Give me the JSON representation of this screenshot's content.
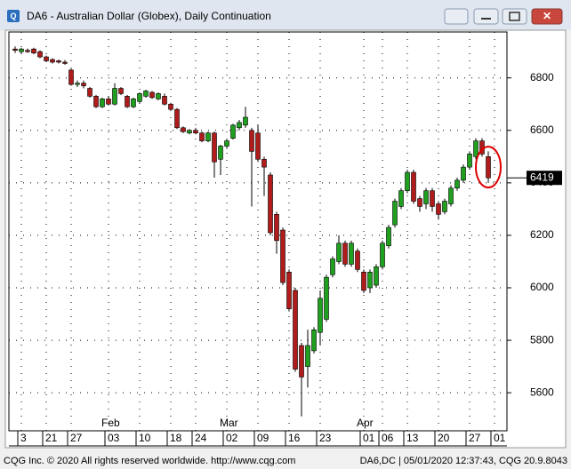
{
  "window": {
    "title": "DA6 - Australian Dollar (Globex), Daily Continuation"
  },
  "footer": {
    "left": "CQG Inc. © 2020 All rights reserved worldwide. http://www.cqg.com",
    "right": "DA6,DC | 05/01/2020 12:37:43, CQG 20.9.8043"
  },
  "chart_data": {
    "type": "candlestick",
    "up_color": "#1fa01f",
    "down_color": "#b01c1c",
    "grid": true,
    "last_price": 6419,
    "xlim": [
      -1,
      79
    ],
    "ylim": [
      5455,
      6975
    ],
    "yticks": [
      5600,
      5800,
      6000,
      6200,
      6400,
      6600,
      6800
    ],
    "xticks": [
      {
        "value": 1,
        "label": "3"
      },
      {
        "value": 5,
        "label": "21"
      },
      {
        "value": 9,
        "label": "27"
      },
      {
        "value": 15,
        "label": "03"
      },
      {
        "value": 20,
        "label": "10"
      },
      {
        "value": 25,
        "label": "18"
      },
      {
        "value": 29,
        "label": "24"
      },
      {
        "value": 34,
        "label": "02"
      },
      {
        "value": 39,
        "label": "09"
      },
      {
        "value": 44,
        "label": "16"
      },
      {
        "value": 49,
        "label": "23"
      },
      {
        "value": 56,
        "label": "01"
      },
      {
        "value": 59,
        "label": "06"
      },
      {
        "value": 63,
        "label": "13"
      },
      {
        "value": 68,
        "label": "20"
      },
      {
        "value": 73,
        "label": "27"
      },
      {
        "value": 77,
        "label": "01"
      }
    ],
    "month_labels": [
      {
        "value": 15,
        "label": "Feb"
      },
      {
        "value": 34,
        "label": "Mar"
      },
      {
        "value": 56,
        "label": "Apr"
      }
    ],
    "open": [
      6910,
      6900,
      6905,
      6910,
      6900,
      6880,
      6870,
      6865,
      6860,
      6830,
      6775,
      6780,
      6760,
      6730,
      6690,
      6720,
      6700,
      6760,
      6730,
      6690,
      6710,
      6730,
      6745,
      6720,
      6730,
      6700,
      6680,
      6610,
      6590,
      6600,
      6590,
      6560,
      6590,
      6490,
      6540,
      6570,
      6610,
      6620,
      6600,
      6590,
      6490,
      6430,
      6280,
      6220,
      6060,
      5990,
      5780,
      5700,
      5760,
      5830,
      5880,
      6050,
      6100,
      6170,
      6090,
      6140,
      6060,
      6000,
      6010,
      6080,
      6160,
      6240,
      6310,
      6370,
      6440,
      6340,
      6320,
      6370,
      6320,
      6290,
      6320,
      6380,
      6410,
      6460,
      6500,
      6560,
      6500
    ],
    "high": [
      6920,
      6915,
      6912,
      6915,
      6905,
      6885,
      6875,
      6870,
      6868,
      6835,
      6790,
      6790,
      6765,
      6735,
      6725,
      6730,
      6780,
      6765,
      6735,
      6725,
      6745,
      6755,
      6750,
      6745,
      6740,
      6705,
      6685,
      6615,
      6605,
      6610,
      6595,
      6595,
      6595,
      6545,
      6565,
      6625,
      6640,
      6690,
      6610,
      6620,
      6500,
      6440,
      6290,
      6230,
      6070,
      6000,
      5790,
      5840,
      5850,
      5990,
      6050,
      6120,
      6200,
      6180,
      6180,
      6150,
      6070,
      6070,
      6090,
      6180,
      6240,
      6340,
      6380,
      6450,
      6450,
      6350,
      6380,
      6380,
      6330,
      6340,
      6390,
      6420,
      6470,
      6520,
      6570,
      6570,
      6520
    ],
    "low": [
      6895,
      6893,
      6895,
      6890,
      6875,
      6860,
      6855,
      6855,
      6850,
      6770,
      6765,
      6760,
      6725,
      6685,
      6685,
      6695,
      6695,
      6735,
      6685,
      6685,
      6705,
      6725,
      6720,
      6715,
      6695,
      6675,
      6605,
      6590,
      6585,
      6585,
      6555,
      6555,
      6420,
      6430,
      6530,
      6565,
      6600,
      6610,
      6310,
      6480,
      6350,
      6200,
      6130,
      6010,
      5910,
      5680,
      5510,
      5620,
      5750,
      5780,
      5870,
      6040,
      6090,
      6080,
      6080,
      6060,
      5980,
      5980,
      6000,
      6070,
      6150,
      6230,
      6300,
      6360,
      6320,
      6290,
      6300,
      6290,
      6260,
      6280,
      6310,
      6370,
      6400,
      6450,
      6490,
      6500,
      6400
    ],
    "close": [
      6905,
      6910,
      6900,
      6895,
      6880,
      6865,
      6860,
      6860,
      6855,
      6775,
      6780,
      6770,
      6730,
      6690,
      6720,
      6700,
      6760,
      6740,
      6690,
      6720,
      6740,
      6750,
      6725,
      6740,
      6700,
      6680,
      6610,
      6595,
      6600,
      6590,
      6560,
      6590,
      6480,
      6540,
      6560,
      6620,
      6630,
      6650,
      6520,
      6490,
      6460,
      6210,
      6180,
      6020,
      5920,
      5690,
      5660,
      5780,
      5840,
      5960,
      6040,
      6110,
      6170,
      6090,
      6170,
      6070,
      5990,
      6060,
      6080,
      6170,
      6230,
      6330,
      6370,
      6440,
      6330,
      6310,
      6370,
      6310,
      6280,
      6330,
      6380,
      6410,
      6460,
      6510,
      6560,
      6510,
      6419
    ]
  }
}
